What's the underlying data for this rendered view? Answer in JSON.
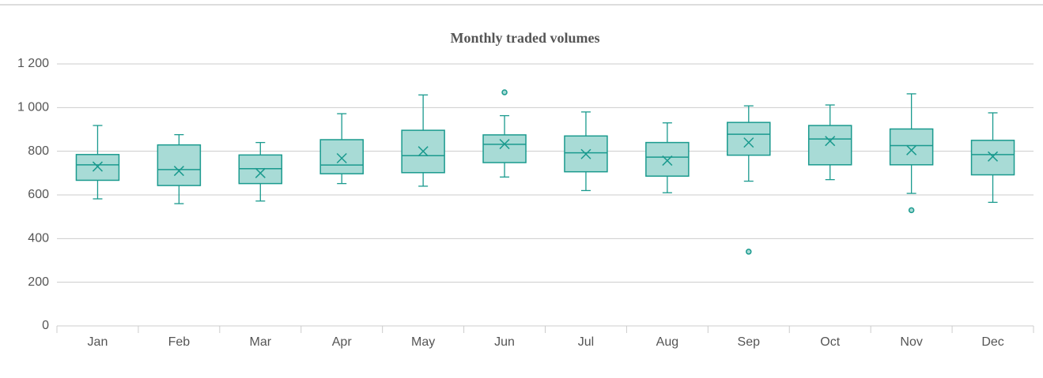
{
  "chart_data": {
    "type": "box",
    "title": "Monthly traded volumes",
    "categories": [
      "Jan",
      "Feb",
      "Mar",
      "Apr",
      "May",
      "Jun",
      "Jul",
      "Aug",
      "Sep",
      "Oct",
      "Nov",
      "Dec"
    ],
    "series": [
      {
        "color": "#1a9a8e",
        "min": [
          582,
          560,
          572,
          652,
          640,
          682,
          620,
          610,
          663,
          670,
          607,
          566
        ],
        "q1": [
          667,
          643,
          652,
          697,
          702,
          748,
          706,
          686,
          782,
          738,
          738,
          692
        ],
        "median": [
          738,
          716,
          720,
          737,
          780,
          832,
          793,
          773,
          878,
          856,
          826,
          785
        ],
        "q3": [
          785,
          829,
          783,
          853,
          896,
          875,
          870,
          840,
          932,
          918,
          902,
          850
        ],
        "max": [
          918,
          876,
          840,
          972,
          1058,
          963,
          980,
          930,
          1008,
          1012,
          1063,
          976
        ],
        "mean": [
          730,
          710,
          700,
          768,
          800,
          833,
          787,
          757,
          840,
          847,
          805,
          776
        ],
        "outliers": [
          [],
          [],
          [],
          [],
          [],
          [
            1070
          ],
          [],
          [],
          [
            340
          ],
          [],
          [
            530
          ],
          []
        ]
      }
    ],
    "ylim": [
      0,
      1200
    ],
    "yticks": [
      0,
      200,
      400,
      600,
      800,
      {
        "value": 1000,
        "label": "1 000"
      },
      {
        "value": 1200,
        "label": "1 200"
      }
    ],
    "grid": true
  }
}
